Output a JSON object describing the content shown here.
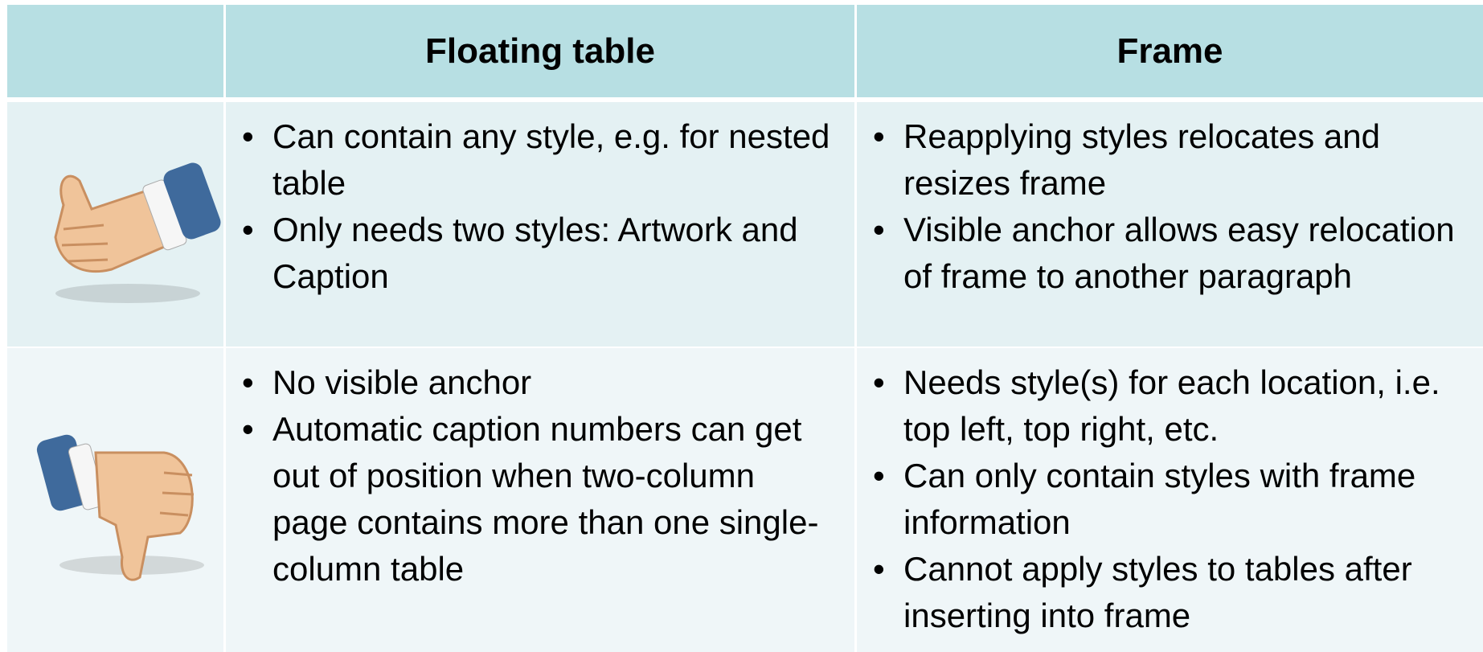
{
  "table": {
    "columns": [
      "Floating table",
      "Frame"
    ],
    "rows": [
      {
        "icon": "thumbs-up",
        "cells": [
          [
            "Can contain any style, e.g. for nested table",
            "Only needs two styles: Artwork and Caption"
          ],
          [
            "Reapplying styles relocates and resizes frame",
            "Visible anchor allows easy relocation of frame to another paragraph"
          ]
        ]
      },
      {
        "icon": "thumbs-down",
        "cells": [
          [
            "No visible anchor",
            "Automatic caption numbers can get out of position when two-column page contains more than one single-column table"
          ],
          [
            "Needs style(s) for each location, i.e. top left, top right, etc.",
            "Can only contain styles with frame information",
            "Cannot apply styles to tables after inserting into frame"
          ]
        ]
      }
    ]
  }
}
